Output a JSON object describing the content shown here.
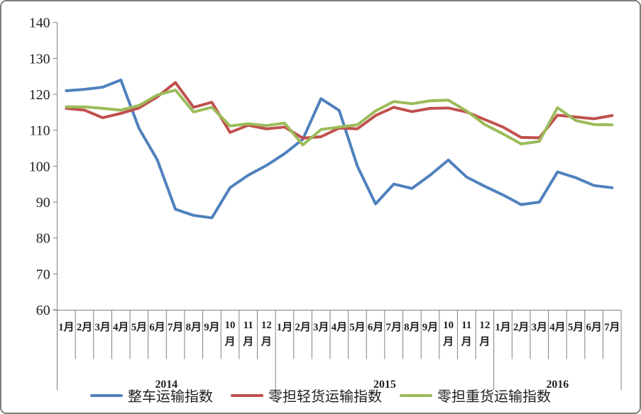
{
  "chart_data": {
    "type": "line",
    "title": "",
    "grid": false,
    "legend_position": "bottom",
    "y_axis": {
      "min": 60,
      "max": 140,
      "step": 10,
      "ticks": [
        140,
        130,
        120,
        110,
        100,
        90,
        80,
        70,
        60
      ]
    },
    "x_axis": {
      "month_labels": [
        "1月",
        "2月",
        "3月",
        "4月",
        "5月",
        "6月",
        "7月",
        "8月",
        "9月",
        "10月",
        "11月",
        "12月",
        "1月",
        "2月",
        "3月",
        "4月",
        "5月",
        "6月",
        "7月",
        "8月",
        "9月",
        "10月",
        "11月",
        "12月",
        "1月",
        "2月",
        "3月",
        "4月",
        "5月",
        "6月",
        "7月"
      ],
      "years": [
        {
          "label": "2014",
          "months": 12
        },
        {
          "label": "2015",
          "months": 12
        },
        {
          "label": "2016",
          "months": 7
        }
      ]
    },
    "series": [
      {
        "id": "full-truckload-index",
        "name": "整车运输指数",
        "color": "#4F81BD",
        "values": [
          121,
          121.4,
          122,
          124,
          110.5,
          101.8,
          88,
          86.3,
          85.6,
          94,
          97.5,
          100.2,
          103.5,
          107.5,
          118.8,
          115.5,
          100,
          89.5,
          95,
          93.8,
          97.5,
          101.7,
          97,
          94.4,
          92,
          89.3,
          90,
          98.4,
          96.8,
          94.6,
          94
        ]
      },
      {
        "id": "ltl-light-cargo-index",
        "name": "零担轻货运输指数",
        "color": "#C0504D",
        "values": [
          116.1,
          115.6,
          113.5,
          114.7,
          116.2,
          119.3,
          123.3,
          116.4,
          117.8,
          109.4,
          111.4,
          110.4,
          110.9,
          107.8,
          108.2,
          110.6,
          110.4,
          114.1,
          116.4,
          115.2,
          116.1,
          116.2,
          115.1,
          113,
          110.9,
          108,
          107.9,
          114.2,
          113.7,
          113.2,
          114.1
        ]
      },
      {
        "id": "ltl-heavy-cargo-index",
        "name": "零担重货运输指数",
        "color": "#9BBB59",
        "values": [
          116.5,
          116.5,
          116.1,
          115.6,
          116.9,
          119.8,
          121.2,
          115.1,
          116.4,
          111.2,
          111.8,
          111.3,
          112,
          105.9,
          110.2,
          110.9,
          111.5,
          115.4,
          118,
          117.4,
          118.2,
          118.4,
          115.4,
          111.6,
          109,
          106.2,
          106.9,
          116.3,
          112.7,
          111.6,
          111.5
        ]
      }
    ]
  }
}
